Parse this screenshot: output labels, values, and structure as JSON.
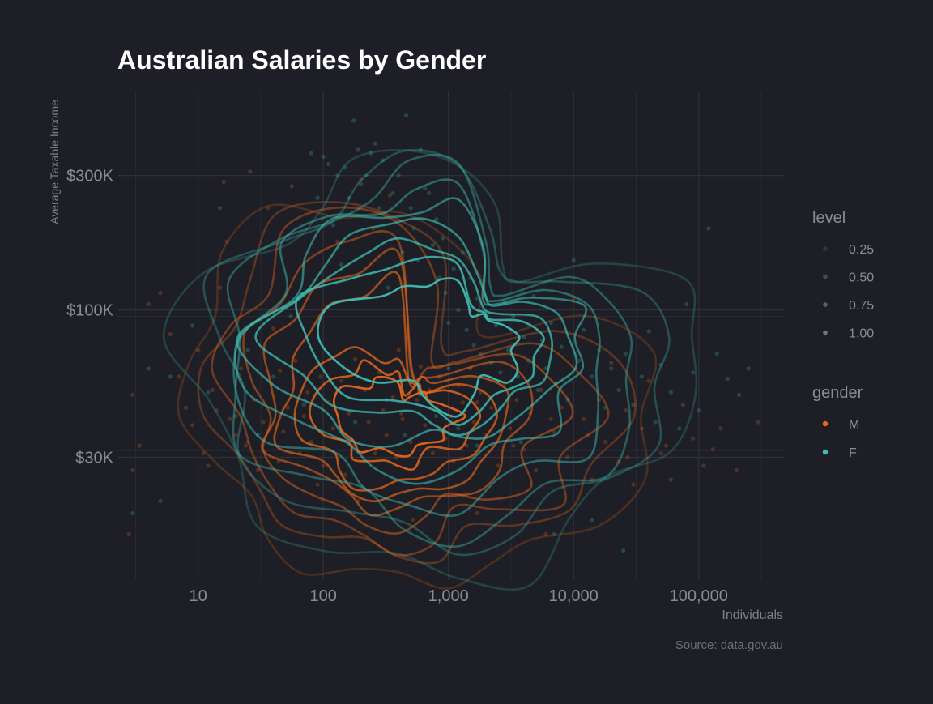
{
  "chart_data": {
    "type": "scatter",
    "title": "Australian Salaries by Gender",
    "xlabel": "Individuals",
    "ylabel": "Average Taxable Income",
    "caption": "Source: data.gov.au",
    "x_scale": "log10",
    "y_scale": "log10",
    "xlim": [
      2.3,
      480000
    ],
    "ylim": [
      11000,
      600000
    ],
    "x_ticks": [
      10,
      100,
      1000,
      10000,
      100000
    ],
    "x_tick_labels": [
      "10",
      "100",
      "1,000",
      "10,000",
      "100,000"
    ],
    "y_ticks": [
      30000,
      100000,
      300000
    ],
    "y_tick_labels": [
      "$30K",
      "$100K",
      "$300K"
    ],
    "grid": true,
    "legend_position": "right",
    "legend_level": {
      "title": "level",
      "items": [
        "0.25",
        "0.50",
        "0.75",
        "1.00"
      ],
      "alphas": [
        0.25,
        0.5,
        0.75,
        1.0
      ]
    },
    "legend_gender": {
      "title": "gender",
      "items": [
        "M",
        "F"
      ]
    },
    "colors": {
      "M": "#e8671d",
      "F": "#3fbfb5",
      "background": "#1e1f26",
      "grid": "#2f3038",
      "text": "#8a8c95"
    },
    "series": [
      {
        "name": "M",
        "points": [
          [
            3,
            50000
          ],
          [
            3,
            27000
          ],
          [
            3.4,
            33000
          ],
          [
            4,
            105000
          ],
          [
            5,
            115000
          ],
          [
            6,
            82000
          ],
          [
            7,
            58000
          ],
          [
            8,
            45000
          ],
          [
            9,
            39000
          ],
          [
            10,
            72000
          ],
          [
            11,
            31000
          ],
          [
            12,
            28000
          ],
          [
            13,
            52000
          ],
          [
            14,
            44000
          ],
          [
            16,
            285000
          ],
          [
            17,
            175000
          ],
          [
            18,
            41000
          ],
          [
            20,
            36000
          ],
          [
            22,
            62000
          ],
          [
            24,
            33000
          ],
          [
            26,
            310000
          ],
          [
            28,
            48000
          ],
          [
            30,
            27000
          ],
          [
            33,
            40000
          ],
          [
            36,
            230000
          ],
          [
            38,
            55000
          ],
          [
            40,
            86000
          ],
          [
            44,
            29000
          ],
          [
            48,
            37000
          ],
          [
            52,
            45000
          ],
          [
            56,
            275000
          ],
          [
            60,
            66000
          ],
          [
            65,
            31000
          ],
          [
            70,
            42000
          ],
          [
            75,
            51000
          ],
          [
            80,
            34000
          ],
          [
            88,
            120000
          ],
          [
            95,
            58000
          ],
          [
            100,
            28000
          ],
          [
            110,
            47000
          ],
          [
            120,
            38000
          ],
          [
            130,
            175000
          ],
          [
            140,
            56000
          ],
          [
            150,
            26000
          ],
          [
            160,
            43000
          ],
          [
            170,
            33000
          ],
          [
            180,
            67000
          ],
          [
            190,
            21000
          ],
          [
            200,
            290000
          ],
          [
            215,
            52000
          ],
          [
            230,
            40000
          ],
          [
            250,
            195000
          ],
          [
            260,
            31000
          ],
          [
            280,
            60000
          ],
          [
            300,
            44000
          ],
          [
            320,
            36000
          ],
          [
            340,
            255000
          ],
          [
            360,
            49000
          ],
          [
            380,
            30000
          ],
          [
            400,
            72000
          ],
          [
            430,
            41000
          ],
          [
            460,
            57000
          ],
          [
            500,
            34000
          ],
          [
            520,
            18000
          ],
          [
            560,
            48000
          ],
          [
            600,
            63000
          ],
          [
            650,
            39000
          ],
          [
            700,
            52000
          ],
          [
            750,
            31000
          ],
          [
            800,
            45000
          ],
          [
            850,
            58000
          ],
          [
            900,
            37000
          ],
          [
            1000,
            155000
          ],
          [
            1050,
            42000
          ],
          [
            1100,
            29000
          ],
          [
            1200,
            54000
          ],
          [
            1300,
            47000
          ],
          [
            1400,
            33000
          ],
          [
            1500,
            62000
          ],
          [
            1600,
            40000
          ],
          [
            1700,
            19000
          ],
          [
            1800,
            51000
          ],
          [
            2000,
            36000
          ],
          [
            2200,
            45000
          ],
          [
            2500,
            28000
          ],
          [
            2800,
            55000
          ],
          [
            3100,
            38000
          ],
          [
            3500,
            48000
          ],
          [
            4000,
            32000
          ],
          [
            4500,
            43000
          ],
          [
            5000,
            27000
          ],
          [
            5500,
            52000
          ],
          [
            6000,
            16000
          ],
          [
            7000,
            37000
          ],
          [
            8000,
            45000
          ],
          [
            9000,
            30000
          ],
          [
            10000,
            110000
          ],
          [
            12000,
            41000
          ],
          [
            14000,
            25000
          ],
          [
            16000,
            48000
          ],
          [
            18000,
            34000
          ],
          [
            20000,
            65000
          ],
          [
            23000,
            29000
          ],
          [
            26000,
            44000
          ],
          [
            30000,
            24000
          ],
          [
            35000,
            38000
          ],
          [
            40000,
            56000
          ],
          [
            50000,
            31000
          ],
          [
            60000,
            25000
          ],
          [
            75000,
            46000
          ],
          [
            90000,
            35000
          ],
          [
            110000,
            28000
          ],
          [
            150000,
            38000
          ],
          [
            200000,
            27000
          ],
          [
            300000,
            40000
          ],
          [
            2.8,
            16000
          ],
          [
            15,
            120000
          ],
          [
            25,
            34000
          ],
          [
            45,
            61000
          ],
          [
            90,
            24000
          ],
          [
            210,
            29000
          ],
          [
            420,
            43000
          ],
          [
            950,
            35000
          ],
          [
            1700,
            47000
          ],
          [
            3300,
            33000
          ],
          [
            6600,
            41000
          ],
          [
            13000,
            36000
          ],
          [
            27000,
            30000
          ],
          [
            55000,
            33000
          ],
          [
            130000,
            32000
          ]
        ]
      },
      {
        "name": "F",
        "points": [
          [
            3,
            19000
          ],
          [
            4,
            62000
          ],
          [
            5,
            21000
          ],
          [
            6,
            58000
          ],
          [
            9,
            88000
          ],
          [
            12,
            51000
          ],
          [
            15,
            230000
          ],
          [
            20,
            42000
          ],
          [
            25,
            72000
          ],
          [
            30,
            36000
          ],
          [
            40,
            58000
          ],
          [
            55,
            95000
          ],
          [
            70,
            46000
          ],
          [
            80,
            360000
          ],
          [
            90,
            250000
          ],
          [
            100,
            350000
          ],
          [
            110,
            330000
          ],
          [
            120,
            200000
          ],
          [
            130,
            300000
          ],
          [
            140,
            145000
          ],
          [
            150,
            320000
          ],
          [
            160,
            250000
          ],
          [
            175,
            470000
          ],
          [
            190,
            370000
          ],
          [
            200,
            280000
          ],
          [
            220,
            300000
          ],
          [
            240,
            360000
          ],
          [
            260,
            390000
          ],
          [
            280,
            230000
          ],
          [
            300,
            340000
          ],
          [
            330,
            120000
          ],
          [
            360,
            260000
          ],
          [
            400,
            300000
          ],
          [
            430,
            160000
          ],
          [
            460,
            490000
          ],
          [
            500,
            230000
          ],
          [
            530,
            195000
          ],
          [
            570,
            150000
          ],
          [
            600,
            370000
          ],
          [
            650,
            270000
          ],
          [
            700,
            260000
          ],
          [
            750,
            170000
          ],
          [
            800,
            210000
          ],
          [
            850,
            130000
          ],
          [
            900,
            180000
          ],
          [
            950,
            115000
          ],
          [
            1000,
            90000
          ],
          [
            1100,
            140000
          ],
          [
            1200,
            100000
          ],
          [
            1300,
            160000
          ],
          [
            1400,
            85000
          ],
          [
            1500,
            130000
          ],
          [
            1600,
            75000
          ],
          [
            1700,
            110000
          ],
          [
            1800,
            70000
          ],
          [
            2000,
            95000
          ],
          [
            2200,
            65000
          ],
          [
            2400,
            88000
          ],
          [
            2600,
            60000
          ],
          [
            2800,
            105000
          ],
          [
            3000,
            72000
          ],
          [
            3300,
            95000
          ],
          [
            3600,
            58000
          ],
          [
            4000,
            80000
          ],
          [
            4400,
            66000
          ],
          [
            4800,
            112000
          ],
          [
            5200,
            52000
          ],
          [
            5600,
            78000
          ],
          [
            6000,
            62000
          ],
          [
            6600,
            90000
          ],
          [
            7200,
            55000
          ],
          [
            8000,
            74000
          ],
          [
            9000,
            48000
          ],
          [
            10000,
            150000
          ],
          [
            11000,
            66000
          ],
          [
            12000,
            85000
          ],
          [
            14000,
            58000
          ],
          [
            16000,
            72000
          ],
          [
            18000,
            45000
          ],
          [
            20000,
            62000
          ],
          [
            23000,
            52000
          ],
          [
            26000,
            70000
          ],
          [
            30000,
            46000
          ],
          [
            35000,
            58000
          ],
          [
            40000,
            84000
          ],
          [
            45000,
            40000
          ],
          [
            50000,
            64000
          ],
          [
            60000,
            51000
          ],
          [
            70000,
            38000
          ],
          [
            80000,
            105000
          ],
          [
            90000,
            60000
          ],
          [
            100000,
            44000
          ],
          [
            120000,
            195000
          ],
          [
            140000,
            70000
          ],
          [
            170000,
            57000
          ],
          [
            210000,
            50000
          ],
          [
            250000,
            62000
          ],
          [
            7000,
            16000
          ],
          [
            14000,
            18000
          ],
          [
            25000,
            14000
          ],
          [
            800,
            42000
          ],
          [
            1200,
            38000
          ],
          [
            1700,
            33000
          ],
          [
            2600,
            45000
          ],
          [
            3800,
            34000
          ],
          [
            600,
            50000
          ],
          [
            450,
            36000
          ],
          [
            320,
            48000
          ],
          [
            180,
            40000
          ],
          [
            1000,
            62000
          ]
        ]
      }
    ]
  }
}
